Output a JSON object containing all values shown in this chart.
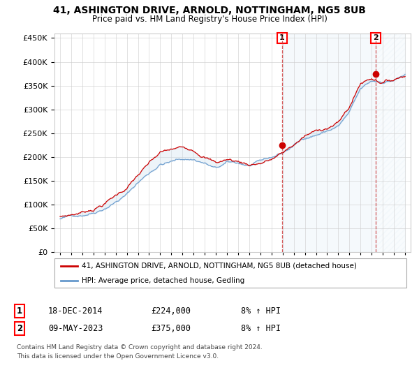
{
  "title": "41, ASHINGTON DRIVE, ARNOLD, NOTTINGHAM, NG5 8UB",
  "subtitle": "Price paid vs. HM Land Registry's House Price Index (HPI)",
  "ylim": [
    0,
    460000
  ],
  "yticks": [
    0,
    50000,
    100000,
    150000,
    200000,
    250000,
    300000,
    350000,
    400000,
    450000
  ],
  "sale1_date": "18-DEC-2014",
  "sale1_price": 224000,
  "sale1_hpi": "8% ↑ HPI",
  "sale2_date": "09-MAY-2023",
  "sale2_price": 375000,
  "sale2_hpi": "8% ↑ HPI",
  "legend_line1": "41, ASHINGTON DRIVE, ARNOLD, NOTTINGHAM, NG5 8UB (detached house)",
  "legend_line2": "HPI: Average price, detached house, Gedling",
  "footnote1": "Contains HM Land Registry data © Crown copyright and database right 2024.",
  "footnote2": "This data is licensed under the Open Government Licence v3.0.",
  "line_color_red": "#cc0000",
  "line_color_blue": "#6699cc",
  "fill_color_blue": "#cce0f0",
  "vline_color": "#cc3333",
  "background_color": "#ffffff",
  "grid_color": "#cccccc",
  "sale1_x": 2014.958,
  "sale2_x": 2023.37
}
